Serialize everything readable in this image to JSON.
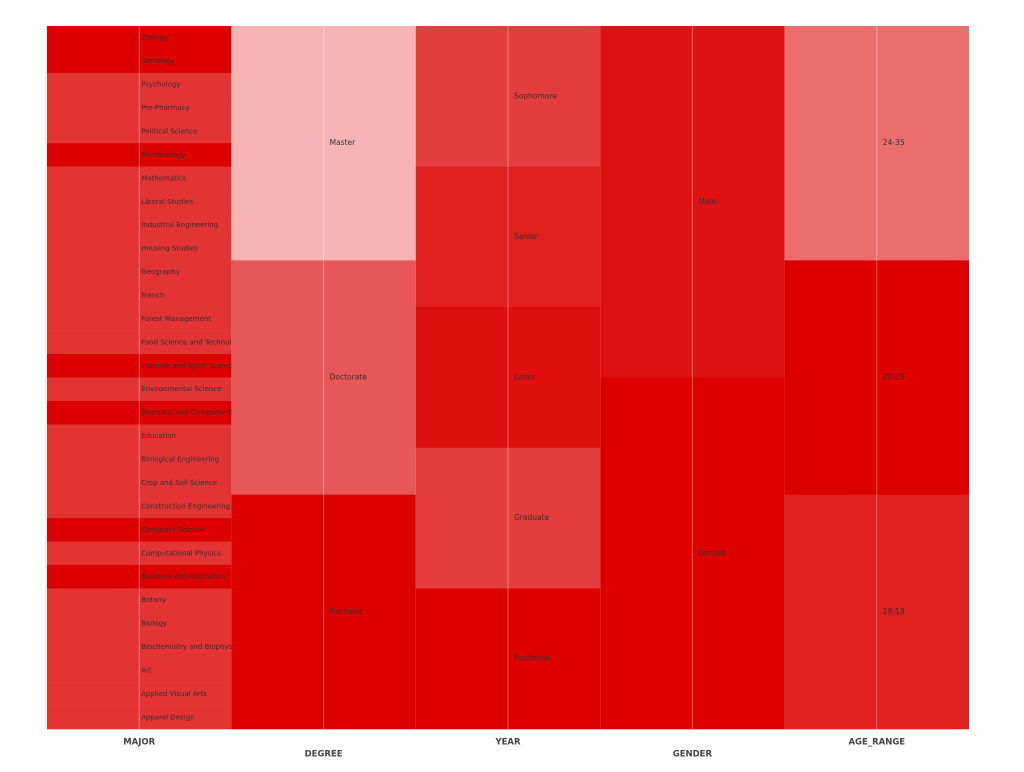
{
  "chart_data": {
    "type": "parallel-categories",
    "title": "",
    "dimensions": [
      {
        "name": "MAJOR",
        "categories": [
          {
            "label": "Zoology",
            "level": 1.0
          },
          {
            "label": "Sociology",
            "level": 1.0
          },
          {
            "label": "Psychology",
            "level": 0.8
          },
          {
            "label": "Pre-Pharmacy",
            "level": 0.8
          },
          {
            "label": "Political Science",
            "level": 0.8
          },
          {
            "label": "Microbiology",
            "level": 1.0
          },
          {
            "label": "Mathematics",
            "level": 0.8
          },
          {
            "label": "Liberal Studies",
            "level": 0.8
          },
          {
            "label": "Industrial Engineering",
            "level": 0.8
          },
          {
            "label": "Housing Studies",
            "level": 0.8
          },
          {
            "label": "Geography",
            "level": 0.8
          },
          {
            "label": "French",
            "level": 0.8
          },
          {
            "label": "Forest Management",
            "level": 0.8
          },
          {
            "label": "Food Science and Technology",
            "level": 0.8
          },
          {
            "label": "Exercise and Sport Science",
            "level": 1.0
          },
          {
            "label": "Environmental Science",
            "level": 0.8
          },
          {
            "label": "Electrical and Computer Engineering",
            "level": 1.0
          },
          {
            "label": "Education",
            "level": 0.8
          },
          {
            "label": "Biological Engineering",
            "level": 0.8
          },
          {
            "label": "Crop and Soil Science",
            "level": 0.8
          },
          {
            "label": "Construction Engineering Management",
            "level": 0.8
          },
          {
            "label": "Computer Science",
            "level": 1.0
          },
          {
            "label": "Computational Physics",
            "level": 0.8
          },
          {
            "label": "Business Administration",
            "level": 1.0
          },
          {
            "label": "Botany",
            "level": 0.8
          },
          {
            "label": "Biology",
            "level": 0.8
          },
          {
            "label": "Biochemistry and Biophysics",
            "level": 0.8
          },
          {
            "label": "Art",
            "level": 0.8
          },
          {
            "label": "Applied Visual Arts",
            "level": 0.8
          },
          {
            "label": "Apparel Design",
            "level": 0.8
          }
        ]
      },
      {
        "name": "DEGREE",
        "categories": [
          {
            "label": "Master",
            "level": 0.3
          },
          {
            "label": "Doctorate",
            "level": 0.66
          },
          {
            "label": "Bachelor",
            "level": 1.0
          }
        ]
      },
      {
        "name": "YEAR",
        "categories": [
          {
            "label": "Sophomore",
            "level": 0.76
          },
          {
            "label": "Senior",
            "level": 0.88
          },
          {
            "label": "Junior",
            "level": 0.94
          },
          {
            "label": "Graduate",
            "level": 0.76
          },
          {
            "label": "Freshman",
            "level": 1.0
          }
        ]
      },
      {
        "name": "GENDER",
        "categories": [
          {
            "label": "Male",
            "level": 0.93
          },
          {
            "label": "Female",
            "level": 1.0
          }
        ]
      },
      {
        "name": "AGE_RANGE",
        "categories": [
          {
            "label": "24-35",
            "level": 0.57
          },
          {
            "label": "20-23",
            "level": 1.0
          },
          {
            "label": "18-19",
            "level": 0.88
          }
        ]
      }
    ],
    "colors": {
      "base": "#dc0000",
      "background": "#ffffff",
      "text": "#333333",
      "axis_label": "#444444"
    }
  }
}
